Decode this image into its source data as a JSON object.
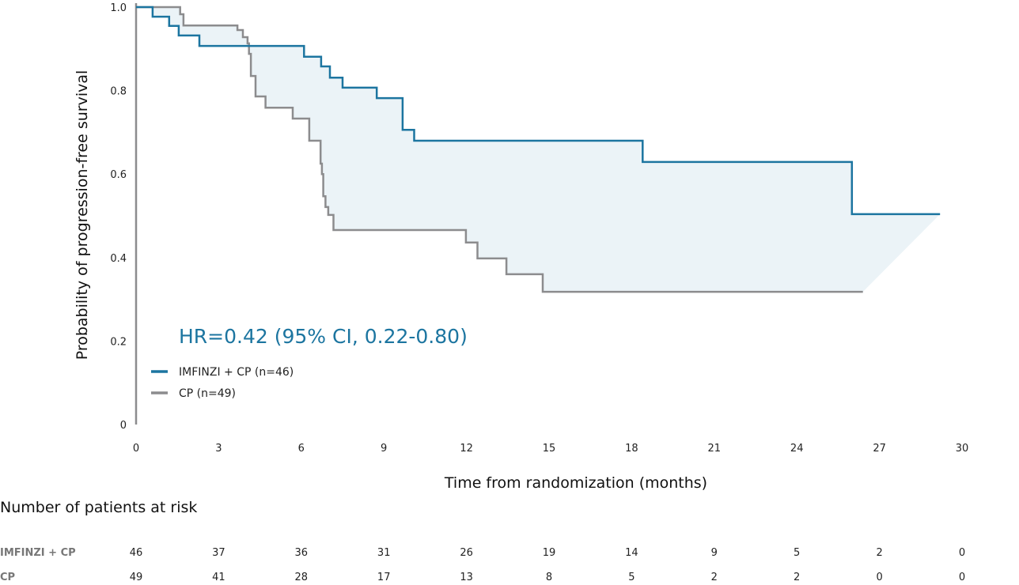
{
  "chart_data": {
    "type": "line",
    "subtype": "kaplan-meier step",
    "xlabel": "Time from randomization (months)",
    "ylabel": "Probability of progression-free survival",
    "xlim": [
      0,
      30
    ],
    "ylim": [
      0,
      1.0
    ],
    "x_ticks": [
      "0",
      "3",
      "6",
      "9",
      "12",
      "15",
      "18",
      "21",
      "24",
      "27",
      "30"
    ],
    "x_tick_values": [
      0,
      3,
      6,
      9,
      12,
      15,
      18,
      21,
      24,
      27,
      30
    ],
    "y_ticks": [
      "0",
      "0.2",
      "0.4",
      "0.6",
      "0.8",
      "1.0"
    ],
    "y_tick_values": [
      0,
      0.2,
      0.4,
      0.6,
      0.8,
      1.0
    ],
    "grid": false,
    "legend_placement": "bottom-left",
    "annotation": "HR=0.42 (95% CI, 0.22-0.80)",
    "shade_between_series": true,
    "shade_color": "#ebf3f7",
    "series": [
      {
        "name": "IMFINZI + CP (n=46)",
        "color": "#1c75a0",
        "steps": [
          [
            0,
            1.0
          ],
          [
            0.6,
            0.977
          ],
          [
            1.2,
            0.955
          ],
          [
            1.55,
            0.932
          ],
          [
            2.3,
            0.907
          ],
          [
            6.1,
            0.881
          ],
          [
            6.72,
            0.858
          ],
          [
            7.04,
            0.831
          ],
          [
            7.5,
            0.807
          ],
          [
            8.74,
            0.782
          ],
          [
            9.68,
            0.706
          ],
          [
            10.1,
            0.68
          ],
          [
            18.4,
            0.629
          ],
          [
            26.0,
            0.504
          ]
        ],
        "end": 29.2
      },
      {
        "name": "CP (n=49)",
        "color": "#8c8c8e",
        "steps": [
          [
            0,
            1.0
          ],
          [
            1.6,
            0.983
          ],
          [
            1.72,
            0.956
          ],
          [
            3.68,
            0.945
          ],
          [
            3.88,
            0.928
          ],
          [
            4.05,
            0.913
          ],
          [
            4.1,
            0.888
          ],
          [
            4.17,
            0.835
          ],
          [
            4.34,
            0.786
          ],
          [
            4.7,
            0.759
          ],
          [
            5.69,
            0.733
          ],
          [
            6.29,
            0.68
          ],
          [
            6.7,
            0.625
          ],
          [
            6.75,
            0.6
          ],
          [
            6.8,
            0.547
          ],
          [
            6.88,
            0.521
          ],
          [
            6.98,
            0.502
          ],
          [
            7.17,
            0.466
          ],
          [
            11.98,
            0.436
          ],
          [
            12.4,
            0.398
          ],
          [
            13.45,
            0.36
          ],
          [
            14.77,
            0.318
          ]
        ],
        "end": 26.4
      }
    ]
  },
  "risk_table": {
    "title": "Number of patients at risk",
    "rows": [
      {
        "label": "IMFINZI + CP",
        "values": [
          "46",
          "37",
          "36",
          "31",
          "26",
          "19",
          "14",
          "9",
          "5",
          "2",
          "0"
        ]
      },
      {
        "label": "CP",
        "values": [
          "49",
          "41",
          "28",
          "17",
          "13",
          "8",
          "5",
          "2",
          "2",
          "0",
          "0"
        ]
      }
    ]
  }
}
